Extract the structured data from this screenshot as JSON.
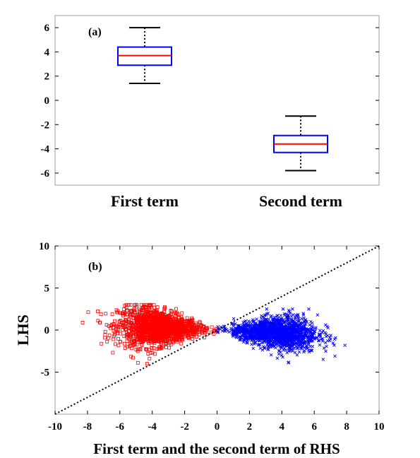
{
  "chart_data": [
    {
      "type": "box",
      "panel_label": "(a)",
      "categories": [
        "First term",
        "Second term"
      ],
      "boxes": [
        {
          "whisker_low": 1.4,
          "q1": 2.9,
          "median": 3.7,
          "q3": 4.4,
          "whisker_high": 6.0
        },
        {
          "whisker_low": -5.8,
          "q1": -4.3,
          "median": -3.6,
          "q3": -2.9,
          "whisker_high": -1.3
        }
      ],
      "ylim": [
        -7,
        7
      ],
      "yticks": [
        "6",
        "4",
        "2",
        "0",
        "-2",
        "-4",
        "-6"
      ],
      "ytick_values": [
        6,
        4,
        2,
        0,
        -2,
        -4,
        -6
      ],
      "colors": {
        "box": "#0000ff",
        "median": "#ff0000",
        "whisker": "#000000"
      }
    },
    {
      "type": "scatter",
      "panel_label": "(b)",
      "xlabel": "First term and the second term of RHS",
      "ylabel": "LHS",
      "xlim": [
        -10,
        10
      ],
      "ylim": [
        -10,
        10
      ],
      "xticks": [
        "-10",
        "-8",
        "-6",
        "-4",
        "-2",
        "0",
        "2",
        "4",
        "6",
        "8",
        "10"
      ],
      "xtick_values": [
        -10,
        -8,
        -6,
        -4,
        -2,
        0,
        2,
        4,
        6,
        8,
        10
      ],
      "yticks": [
        "10",
        "5",
        "0",
        "-5"
      ],
      "ytick_values": [
        10,
        5,
        0,
        -5
      ],
      "reference_line": {
        "style": "dotted",
        "from": [
          -10,
          -10
        ],
        "to": [
          10,
          10
        ]
      },
      "series": [
        {
          "marker": "square",
          "color": "#ff0000",
          "x_range": [
            -8.5,
            0
          ],
          "y_range": [
            -4,
            3
          ],
          "center": [
            -3.6,
            0.3
          ]
        },
        {
          "marker": "x",
          "color": "#0000ff",
          "x_range": [
            0,
            10
          ],
          "y_range": [
            -4,
            2.5
          ],
          "center": [
            3.6,
            -0.3
          ]
        }
      ]
    }
  ]
}
